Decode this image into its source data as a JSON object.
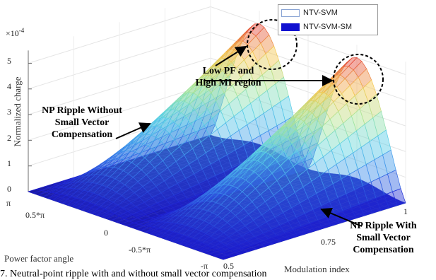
{
  "chart_data": {
    "type": "surface3d",
    "exponent": "×10^{-4}",
    "zlabel": "Normalized charge",
    "xlabel": "Modulation index",
    "ylabel": "Power factor angle",
    "zticks": [
      "0",
      "1",
      "2",
      "3",
      "4",
      "5"
    ],
    "xticks": [
      "0.5",
      "0.75",
      "1"
    ],
    "yticks": [
      "π",
      "0.5*π",
      "0",
      "-0.5*π",
      "-π"
    ],
    "xlim": [
      0.5,
      1
    ],
    "ylim": [
      -3.1416,
      3.1416
    ],
    "zlim": [
      0,
      5.5
    ],
    "legend_position": "top-right",
    "series": [
      {
        "name": "NTV-SVM",
        "style": "mesh",
        "peak": 5.0
      },
      {
        "name": "NTV-SVM-SM",
        "style": "solid",
        "color": "#1010d0",
        "peak": 0.3
      }
    ],
    "annotations": {
      "low_pf": [
        "Low PF and",
        "High MI region"
      ],
      "without_comp": [
        "NP Ripple Without",
        "Small Vector",
        "Compensation"
      ],
      "with_comp": [
        "NP Ripple With",
        "Small Vector",
        "Compensation"
      ]
    }
  },
  "caption": "7. Neutral-point ripple with and without small vector compensation",
  "colors": {
    "mesh_low": "#2a2ad8",
    "mesh_high": "#e03030",
    "sm_surface": "#1c1ca8"
  }
}
